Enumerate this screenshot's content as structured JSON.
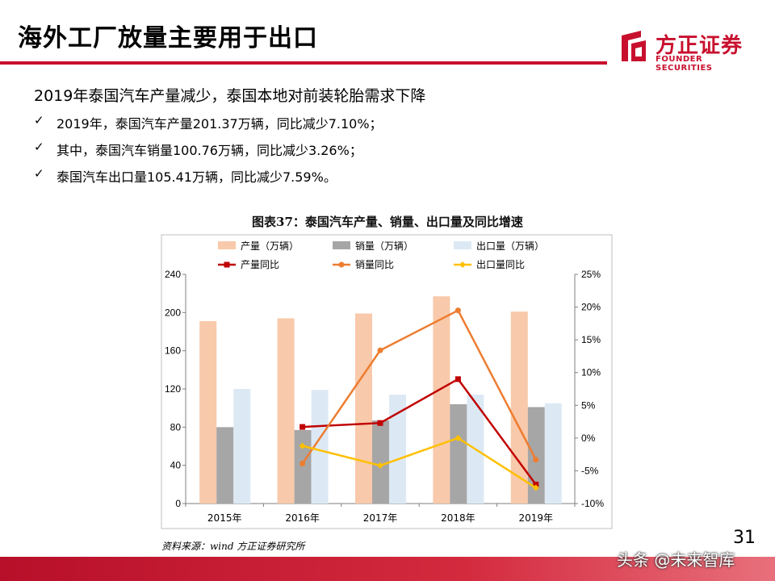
{
  "title": "海外工厂放量主要用于出口",
  "logo": {
    "cn": "方正证券",
    "en": "FOUNDER SECURITIES"
  },
  "heading": "2019年泰国汽车产量减少，泰国本地对前装轮胎需求下降",
  "bullets": [
    "2019年，泰国汽车产量201.37万辆，同比减少7.10%；",
    "其中，泰国汽车销量100.76万辆，同比减少3.26%；",
    "泰国汽车出口量105.41万辆，同比减少7.59%。"
  ],
  "check_glyph": "✓",
  "chart_title": "图表37：泰国汽车产量、销量、出口量及同比增速",
  "source": "资料来源：wind 方正证券研究所",
  "page_number": "31",
  "watermark": "头条 @未来智库",
  "colors": {
    "accent": "#c8102e",
    "production_bar": "#f8c9aa",
    "sales_bar": "#a6a6a6",
    "export_bar": "#dce9f5",
    "production_yoy": "#c00000",
    "sales_yoy": "#ed7d31",
    "export_yoy": "#ffc000"
  },
  "chart_data": {
    "type": "bar+line",
    "categories": [
      "2015年",
      "2016年",
      "2017年",
      "2018年",
      "2019年"
    ],
    "bars": [
      {
        "name": "产量（万辆）",
        "values": [
          191,
          194,
          199,
          217,
          201
        ]
      },
      {
        "name": "销量（万辆）",
        "values": [
          80,
          77,
          87,
          104,
          101
        ]
      },
      {
        "name": "出口量（万辆）",
        "values": [
          120,
          119,
          114,
          114,
          105
        ]
      }
    ],
    "lines": [
      {
        "name": "产量同比",
        "values": [
          null,
          1.7,
          2.3,
          9.0,
          -7.1
        ]
      },
      {
        "name": "销量同比",
        "values": [
          null,
          -3.9,
          13.4,
          19.5,
          -3.3
        ]
      },
      {
        "name": "出口量同比",
        "values": [
          null,
          -1.2,
          -4.2,
          0.0,
          -7.6
        ]
      }
    ],
    "y_left": {
      "min": 0,
      "max": 240,
      "ticks": [
        "0",
        "40",
        "80",
        "120",
        "160",
        "200",
        "240"
      ]
    },
    "y_right": {
      "min": -10,
      "max": 25,
      "ticks": [
        "-10%",
        "-5%",
        "0%",
        "5%",
        "10%",
        "15%",
        "20%",
        "25%"
      ]
    },
    "grid": false,
    "legend_position": "top"
  }
}
